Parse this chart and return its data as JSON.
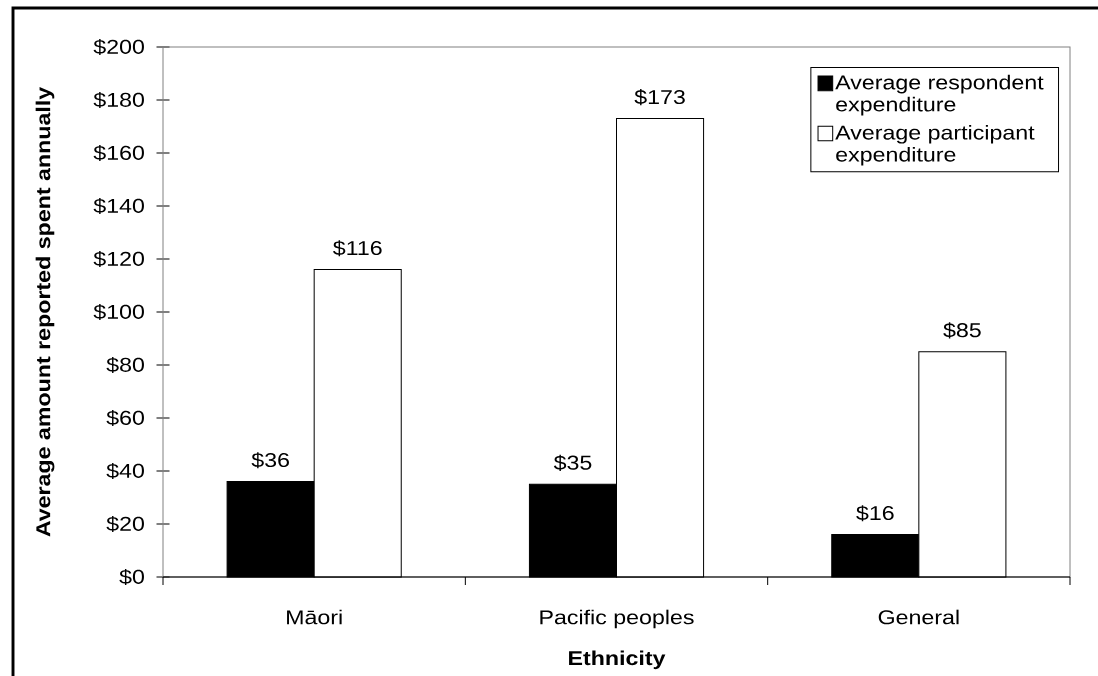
{
  "chart_data": {
    "type": "bar",
    "xlabel": "Ethnicity",
    "ylabel": "Average amount reported spent annually",
    "categories": [
      "Māori",
      "Pacific peoples",
      "General"
    ],
    "series": [
      {
        "name": "Average respondent expenditure",
        "color": "#000000",
        "values": [
          36,
          35,
          16
        ],
        "value_labels": [
          "$36",
          "$35",
          "$16"
        ]
      },
      {
        "name": "Average participant expenditure",
        "color": "#ffffff",
        "values": [
          116,
          173,
          85
        ],
        "value_labels": [
          "$116",
          "$173",
          "$85"
        ]
      }
    ],
    "ylim": [
      0,
      200
    ],
    "yticks": [
      {
        "value": 0,
        "label": "$0"
      },
      {
        "value": 20,
        "label": "$20"
      },
      {
        "value": 40,
        "label": "$40"
      },
      {
        "value": 60,
        "label": "$60"
      },
      {
        "value": 80,
        "label": "$80"
      },
      {
        "value": 100,
        "label": "$100"
      },
      {
        "value": 120,
        "label": "$120"
      },
      {
        "value": 140,
        "label": "$140"
      },
      {
        "value": 160,
        "label": "$160"
      },
      {
        "value": 180,
        "label": "$180"
      },
      {
        "value": 200,
        "label": "$200"
      }
    ],
    "legend": "top right",
    "grid": false
  }
}
